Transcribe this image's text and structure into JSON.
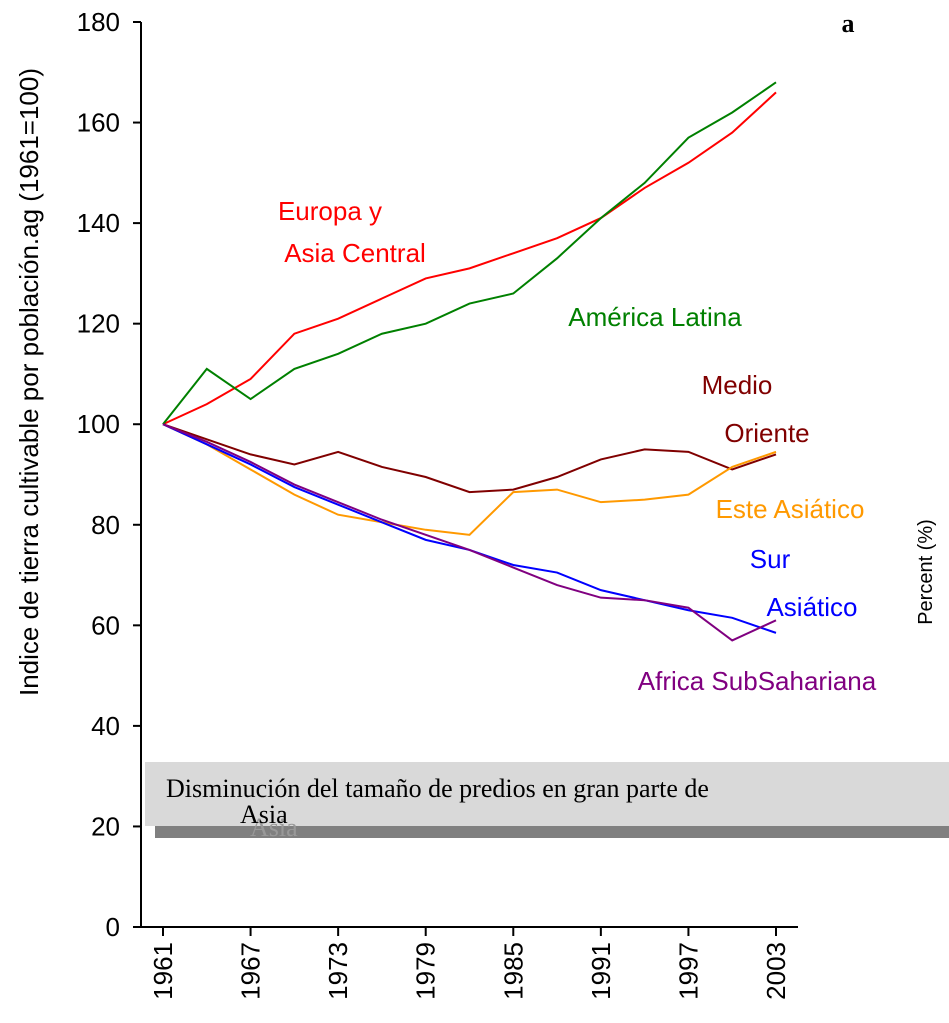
{
  "chart_data": {
    "type": "line",
    "corner_text": "a",
    "y_label": "Indice de tierra cultivable por población.ag (1961=100)",
    "y2_label": "Percent (%)",
    "x": [
      1961,
      1964,
      1967,
      1970,
      1973,
      1976,
      1979,
      1982,
      1985,
      1988,
      1991,
      1994,
      1997,
      2000,
      2003
    ],
    "xlim": [
      1961,
      2003
    ],
    "xticks": [
      1961,
      1967,
      1973,
      1979,
      1985,
      1991,
      1997,
      2003
    ],
    "ylim": [
      0,
      180
    ],
    "yticks": [
      0,
      20,
      40,
      60,
      80,
      100,
      120,
      140,
      160,
      180
    ],
    "series": [
      {
        "name": "Europa y Asia Central",
        "color": "#ff0000",
        "values": [
          100,
          104,
          109,
          118,
          121,
          125,
          129,
          131,
          134,
          137,
          141,
          147,
          152,
          158,
          166
        ]
      },
      {
        "name": "América Latina",
        "color": "#008000",
        "values": [
          100,
          111,
          105,
          111,
          114,
          118,
          120,
          124,
          126,
          133,
          141,
          148,
          157,
          162,
          168
        ]
      },
      {
        "name": "Medio Oriente",
        "color": "#800000",
        "values": [
          100,
          97,
          94,
          92,
          94.5,
          91.5,
          89.5,
          86.5,
          87,
          89.5,
          93,
          95,
          94.5,
          91,
          94
        ]
      },
      {
        "name": "Este Asiático",
        "color": "#ff9900",
        "values": [
          100,
          96,
          91,
          86,
          82,
          80.5,
          79,
          78,
          86.5,
          87,
          84.5,
          85,
          86,
          91.5,
          94.5
        ]
      },
      {
        "name": "Sur Asiático",
        "color": "#0000ff",
        "values": [
          100,
          96,
          92,
          87.5,
          84,
          80.5,
          77,
          75,
          72,
          70.5,
          67,
          65,
          63,
          61.5,
          58.5
        ]
      },
      {
        "name": "Africa SubSahariana",
        "color": "#800080",
        "values": [
          100,
          96.5,
          92.5,
          88,
          84.5,
          81,
          78,
          75,
          71.5,
          68,
          65.5,
          65,
          63.5,
          57,
          61
        ]
      }
    ],
    "annotations": [
      {
        "text": "Europa y",
        "color": "#ff0000"
      },
      {
        "text": "Asia Central",
        "color": "#ff0000"
      },
      {
        "text": "América Latina",
        "color": "#008000"
      },
      {
        "text": "Medio",
        "color": "#800000"
      },
      {
        "text": "Oriente",
        "color": "#800000"
      },
      {
        "text": "Este Asiático",
        "color": "#ff9900"
      },
      {
        "text": "Sur",
        "color": "#0000ff"
      },
      {
        "text": "Asiático",
        "color": "#0000ff"
      },
      {
        "text": "Africa SubSahariana",
        "color": "#800080"
      }
    ],
    "callout": [
      "Disminución del tamaño de predios en gran parte de",
      "Asia"
    ]
  }
}
